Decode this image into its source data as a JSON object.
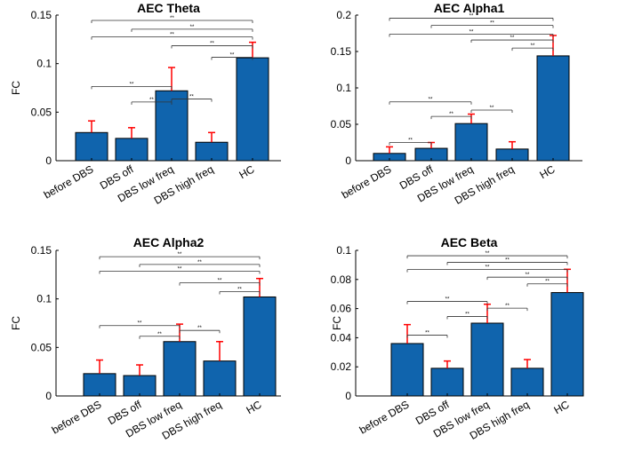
{
  "chart_data": [
    {
      "type": "bar",
      "title": "AEC Theta",
      "ylabel": "FC",
      "xlabel": "",
      "categories": [
        "before DBS",
        "DBS off",
        "DBS low freq",
        "DBS high freq",
        "HC"
      ],
      "values": [
        0.029,
        0.023,
        0.072,
        0.019,
        0.106
      ],
      "errors": [
        0.012,
        0.011,
        0.024,
        0.01,
        0.016
      ],
      "ylim": [
        0,
        0.15
      ],
      "yticks": [
        "0",
        "0.05",
        "0.1",
        "0.15"
      ],
      "bar_color": "#1064ad",
      "error_color": "#ff0000",
      "sig_label": "**",
      "brackets": [
        {
          "from": 0,
          "to": 2,
          "y": 0.0765
        },
        {
          "from": 1,
          "to": 2,
          "y": 0.0605
        },
        {
          "from": 2,
          "to": 3,
          "y": 0.0635
        },
        {
          "from": 0,
          "to": 4,
          "y": 0.1445
        },
        {
          "from": 0,
          "to": 4,
          "y": 0.1275
        },
        {
          "from": 1,
          "to": 4,
          "y": 0.1355
        },
        {
          "from": 2,
          "to": 4,
          "y": 0.1185
        },
        {
          "from": 3,
          "to": 4,
          "y": 0.1065
        }
      ]
    },
    {
      "type": "bar",
      "title": "AEC Alpha1",
      "ylabel": "",
      "xlabel": "",
      "categories": [
        "before DBS",
        "DBS off",
        "DBS low freq",
        "DBS high freq",
        "HC"
      ],
      "values": [
        0.01,
        0.017,
        0.051,
        0.016,
        0.144
      ],
      "errors": [
        0.009,
        0.008,
        0.013,
        0.01,
        0.028
      ],
      "ylim": [
        0,
        0.2
      ],
      "yticks": [
        "0",
        "0.05",
        "0.1",
        "0.15",
        "0.2"
      ],
      "bar_color": "#1064ad",
      "error_color": "#ff0000",
      "sig_label": "**",
      "brackets": [
        {
          "from": 0,
          "to": 1,
          "y": 0.025
        },
        {
          "from": 0,
          "to": 2,
          "y": 0.0808
        },
        {
          "from": 1,
          "to": 2,
          "y": 0.0608
        },
        {
          "from": 2,
          "to": 3,
          "y": 0.0695
        },
        {
          "from": 0,
          "to": 4,
          "y": 0.1958
        },
        {
          "from": 0,
          "to": 4,
          "y": 0.1738
        },
        {
          "from": 1,
          "to": 4,
          "y": 0.1858
        },
        {
          "from": 2,
          "to": 4,
          "y": 0.1658
        },
        {
          "from": 3,
          "to": 4,
          "y": 0.1547
        }
      ]
    },
    {
      "type": "bar",
      "title": "AEC Alpha2",
      "ylabel": "FC",
      "xlabel": "",
      "categories": [
        "before DBS",
        "DBS off",
        "DBS low freq",
        "DBS high freq",
        "HC"
      ],
      "values": [
        0.023,
        0.021,
        0.056,
        0.036,
        0.102
      ],
      "errors": [
        0.014,
        0.011,
        0.018,
        0.02,
        0.019
      ],
      "ylim": [
        0,
        0.15
      ],
      "yticks": [
        "0",
        "0.05",
        "0.1",
        "0.15"
      ],
      "bar_color": "#1064ad",
      "error_color": "#ff0000",
      "sig_label": "**",
      "brackets": [
        {
          "from": 0,
          "to": 2,
          "y": 0.0725
        },
        {
          "from": 1,
          "to": 2,
          "y": 0.0615
        },
        {
          "from": 2,
          "to": 3,
          "y": 0.0675
        },
        {
          "from": 0,
          "to": 4,
          "y": 0.1435
        },
        {
          "from": 0,
          "to": 4,
          "y": 0.1285
        },
        {
          "from": 1,
          "to": 4,
          "y": 0.1355
        },
        {
          "from": 2,
          "to": 4,
          "y": 0.1165
        },
        {
          "from": 3,
          "to": 4,
          "y": 0.1075
        }
      ]
    },
    {
      "type": "bar",
      "title": "AEC Beta",
      "ylabel": "FC",
      "xlabel": "",
      "categories": [
        "before DBS",
        "DBS off",
        "DBS low freq",
        "DBS high freq",
        "HC"
      ],
      "values": [
        0.036,
        0.019,
        0.05,
        0.019,
        0.071
      ],
      "errors": [
        0.013,
        0.005,
        0.013,
        0.006,
        0.016
      ],
      "ylim": [
        0,
        0.1
      ],
      "yticks": [
        "0",
        "0.02",
        "0.04",
        "0.06",
        "0.08",
        "0.1"
      ],
      "bar_color": "#1064ad",
      "error_color": "#ff0000",
      "sig_label": "**",
      "brackets": [
        {
          "from": 0,
          "to": 1,
          "y": 0.0418
        },
        {
          "from": 0,
          "to": 2,
          "y": 0.0649
        },
        {
          "from": 1,
          "to": 2,
          "y": 0.0546
        },
        {
          "from": 2,
          "to": 3,
          "y": 0.0603
        },
        {
          "from": 0,
          "to": 4,
          "y": 0.0963
        },
        {
          "from": 0,
          "to": 4,
          "y": 0.0868
        },
        {
          "from": 1,
          "to": 4,
          "y": 0.0918
        },
        {
          "from": 2,
          "to": 4,
          "y": 0.0816
        },
        {
          "from": 3,
          "to": 4,
          "y": 0.077
        }
      ]
    }
  ]
}
